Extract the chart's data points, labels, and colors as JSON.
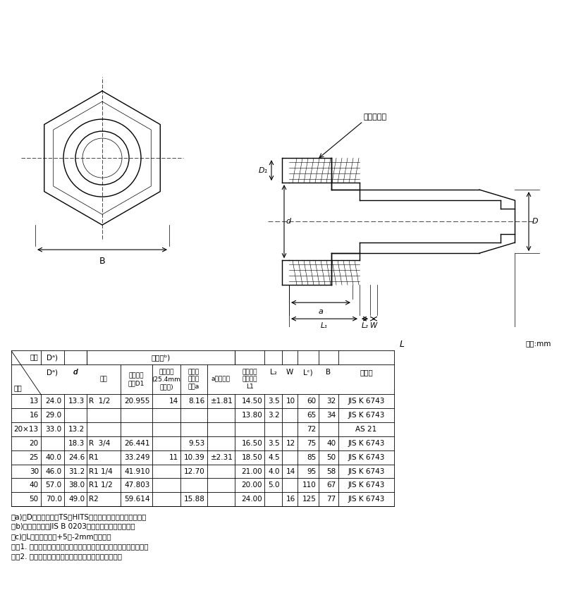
{
  "title": "",
  "unit_label": "単位:mm",
  "table_headers_row1": [
    "記号",
    "Dᵃ)",
    "d",
    "ねじ部ᵇ)",
    "",
    "",
    "",
    "",
    "L₂",
    "W",
    "Lᶜ)",
    "B",
    "規　格"
  ],
  "table_headers_row2": [
    "呼径",
    "",
    "",
    "呼び",
    "基準径の\n外径D1",
    "ねじ山数\n(25.4mm\nにつき)",
    "基準径\nまでの\n長さa",
    "aの許容差",
    "有効ねじ\n部の長さ\nL1",
    "",
    "",
    "",
    ""
  ],
  "neji_span": [
    3,
    6
  ],
  "table_data": [
    [
      "13",
      "24.0",
      "13.3",
      "R  1/2",
      "20.955",
      "14",
      "8.16",
      "±1.81",
      "14.50",
      "3.5",
      "10",
      "60",
      "32",
      "JIS K 6743"
    ],
    [
      "16",
      "29.0",
      "",
      "",
      "",
      "",
      "",
      "",
      "13.80",
      "3.2",
      "",
      "65",
      "34",
      "JIS K 6743"
    ],
    [
      "20×13",
      "33.0",
      "13.2",
      "",
      "",
      "",
      "",
      "",
      "",
      "",
      "",
      "72",
      "",
      "AS 21"
    ],
    [
      "20",
      "",
      "18.3",
      "R  3/4",
      "26.441",
      "",
      "9.53",
      "",
      "16.50",
      "3.5",
      "12",
      "75",
      "40",
      "JIS K 6743"
    ],
    [
      "25",
      "40.0",
      "24.6",
      "R1",
      "33.249",
      "11",
      "10.39",
      "±2.31",
      "18.50",
      "4.5",
      "",
      "85",
      "50",
      "JIS K 6743"
    ],
    [
      "30",
      "46.0",
      "31.2",
      "R1 1/4",
      "41.910",
      "",
      "12.70",
      "",
      "21.00",
      "4.0",
      "14",
      "95",
      "58",
      "JIS K 6743"
    ],
    [
      "40",
      "57.0",
      "38.0",
      "R1 1/2",
      "47.803",
      "",
      "",
      "",
      "20.00",
      "5.0",
      "",
      "110",
      "67",
      "JIS K 6743"
    ],
    [
      "50",
      "70.0",
      "49.0",
      "R2",
      "59.614",
      "",
      "15.88",
      "",
      "24.00",
      "",
      "16",
      "125",
      "77",
      "JIS K 6743"
    ]
  ],
  "notes": [
    "注a)　Dの許容差は、TS・HITS継手受口共通寸法図による。",
    "注b)　ねじ部は、JIS B 0203のテーパおねじとする。",
    "注c)　Lの許容差は、+5／-2mmとする。",
    "注記1. 六角部及び内部の接水部は、硬質ポリ塩化ビニル製である。",
    "注記2. 管端防食継手（コア付き）に対応しています。"
  ],
  "bg_color": "#ffffff",
  "line_color": "#000000",
  "text_color": "#000000"
}
